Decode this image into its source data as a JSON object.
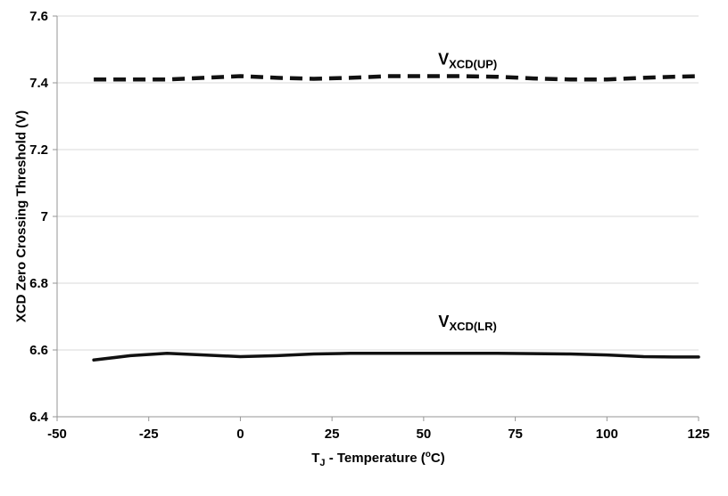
{
  "chart_data": {
    "type": "line",
    "title": "",
    "ylabel": "XCD Zero Crossing Threshold (V)",
    "xlabel": {
      "main": "T",
      "sub": "J",
      "rest": " - Temperature (",
      "sup": "o",
      "end": "C)"
    },
    "xlim": [
      -50,
      125
    ],
    "ylim": [
      6.4,
      7.6
    ],
    "xticks": [
      -50,
      -25,
      0,
      25,
      50,
      75,
      100,
      125
    ],
    "xtick_labels": [
      "-50",
      "-25",
      "0",
      "25",
      "50",
      "75",
      "100",
      "125"
    ],
    "yticks": [
      6.4,
      6.6,
      6.8,
      7.0,
      7.2,
      7.4,
      7.6
    ],
    "ytick_labels": [
      "6.4",
      "6.6",
      "6.8",
      "7",
      "7.2",
      "7.4",
      "7.6"
    ],
    "grid": "horizontal",
    "legend_position": "inline-labels",
    "colors": {
      "grid": "#d9d9d9",
      "axis": "#969696",
      "line": "#111111",
      "text": "#000000"
    },
    "series": [
      {
        "name": "V_XCD(UP)",
        "label_prefix": "V",
        "label_sub": "XCD(UP)",
        "style": "dashed",
        "width": 4.5,
        "label_x": 62,
        "label_y": 7.455,
        "x": [
          -40,
          -30,
          -20,
          -10,
          0,
          10,
          20,
          30,
          40,
          50,
          60,
          70,
          80,
          90,
          100,
          110,
          118,
          125
        ],
        "y": [
          7.41,
          7.41,
          7.41,
          7.415,
          7.42,
          7.415,
          7.412,
          7.415,
          7.42,
          7.42,
          7.42,
          7.418,
          7.413,
          7.41,
          7.41,
          7.415,
          7.418,
          7.42
        ]
      },
      {
        "name": "V_XCD(LR)",
        "label_prefix": "V",
        "label_sub": "XCD(LR)",
        "style": "solid",
        "width": 3.5,
        "label_x": 62,
        "label_y": 6.67,
        "x": [
          -40,
          -30,
          -20,
          -10,
          0,
          10,
          20,
          30,
          40,
          50,
          60,
          70,
          80,
          90,
          100,
          110,
          118,
          125
        ],
        "y": [
          6.57,
          6.583,
          6.59,
          6.585,
          6.58,
          6.583,
          6.588,
          6.59,
          6.59,
          6.59,
          6.59,
          6.59,
          6.589,
          6.588,
          6.585,
          6.58,
          6.579,
          6.579
        ]
      }
    ]
  }
}
